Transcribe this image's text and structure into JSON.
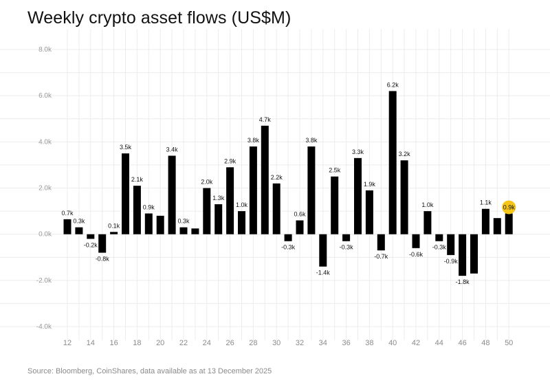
{
  "title": "Weekly crypto asset flows (US$M)",
  "source": "Source: Bloomberg, CoinShares, data available as at 13 December 2025",
  "colors": {
    "bar": "#000000",
    "highlight": "#f5c518",
    "grid": "#ececec",
    "text": "#111111"
  },
  "chart_data": {
    "type": "bar",
    "title": "Weekly crypto asset flows (US$M)",
    "xlabel": "",
    "ylabel": "",
    "ylim": [
      -4000,
      8000
    ],
    "y_ticks": [
      "-4.0k",
      "-2.0k",
      "0.0k",
      "2.0k",
      "4.0k",
      "6.0k",
      "8.0k"
    ],
    "grid": true,
    "categories": [
      12,
      13,
      14,
      15,
      16,
      17,
      18,
      19,
      20,
      21,
      22,
      23,
      24,
      25,
      26,
      27,
      28,
      29,
      30,
      31,
      32,
      33,
      34,
      35,
      36,
      37,
      38,
      39,
      40,
      41,
      42,
      43,
      44,
      45,
      46,
      47,
      48,
      49,
      50
    ],
    "x_tick_labels": [
      "12",
      "14",
      "16",
      "18",
      "20",
      "22",
      "24",
      "26",
      "28",
      "30",
      "32",
      "34",
      "36",
      "38",
      "40",
      "42",
      "44",
      "46",
      "48",
      "50"
    ],
    "values": [
      650,
      300,
      -200,
      -800,
      100,
      3500,
      2100,
      900,
      800,
      3400,
      300,
      250,
      2000,
      1300,
      2900,
      1000,
      3800,
      4700,
      2200,
      -300,
      600,
      3800,
      -1400,
      2500,
      -300,
      3300,
      1900,
      -700,
      6200,
      3200,
      -600,
      1000,
      -300,
      -900,
      -1800,
      -1700,
      1100,
      700,
      900
    ],
    "data_labels": [
      "0.7k",
      "0.3k",
      "-0.2k",
      "-0.8k",
      "0.1k",
      "3.5k",
      "2.1k",
      "0.9k",
      "",
      "3.4k",
      "0.3k",
      "",
      "2.0k",
      "1.3k",
      "2.9k",
      "1.0k",
      "3.8k",
      "4.7k",
      "2.2k",
      "-0.3k",
      "0.6k",
      "3.8k",
      "-1.4k",
      "2.5k",
      "-0.3k",
      "3.3k",
      "1.9k",
      "-0.7k",
      "6.2k",
      "3.2k",
      "-0.6k",
      "1.0k",
      "-0.3k",
      "-0.9k",
      "-1.8k",
      "",
      "1.1k",
      "",
      "0.9k"
    ],
    "highlight_index": 38
  }
}
